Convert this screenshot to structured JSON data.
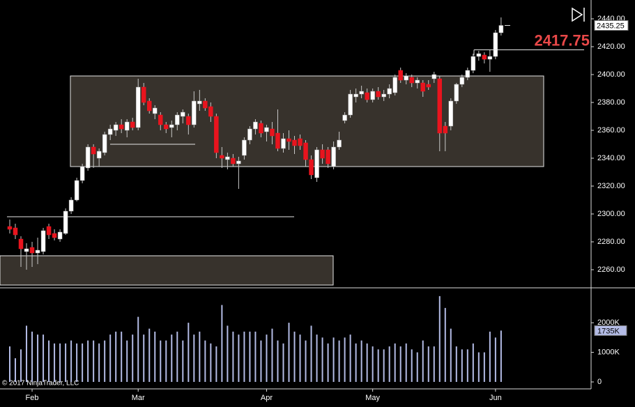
{
  "chart_data": [
    {
      "type": "candlestick",
      "categories": [
        null,
        null,
        null,
        null,
        "Feb",
        null,
        null,
        null,
        null,
        null,
        null,
        null,
        null,
        null,
        null,
        null,
        null,
        null,
        null,
        null,
        null,
        null,
        null,
        "Mar",
        null,
        null,
        null,
        null,
        null,
        null,
        null,
        null,
        null,
        null,
        null,
        null,
        null,
        null,
        null,
        null,
        null,
        null,
        null,
        null,
        null,
        null,
        "Apr",
        null,
        null,
        null,
        null,
        null,
        null,
        null,
        null,
        null,
        null,
        null,
        null,
        null,
        null,
        null,
        null,
        null,
        null,
        "May",
        null,
        null,
        null,
        null,
        null,
        null,
        null,
        null,
        null,
        null,
        null,
        null,
        null,
        null,
        null,
        null,
        null,
        null,
        null,
        null,
        null,
        "Jun",
        null
      ],
      "open": [
        2291,
        2290,
        2282,
        2273,
        2276,
        2272,
        2273,
        2291,
        2286,
        2282,
        2286,
        2302,
        2310,
        2324,
        2333,
        2348,
        2340,
        2344,
        2357,
        2360,
        2364,
        2360,
        2366,
        2362,
        2391,
        2381,
        2372,
        2371,
        2364,
        2362,
        2364,
        2370,
        2370,
        2364,
        2379,
        2381,
        2377,
        2370,
        2342,
        2339,
        2340,
        2336,
        2342,
        2353,
        2361,
        2365,
        2359,
        2361,
        2358,
        2347,
        2354,
        2353,
        2354,
        2351,
        2339,
        2326,
        2346,
        2346,
        2334,
        2348,
        2367,
        2371,
        2384,
        2386,
        2387,
        2382,
        2388,
        2384,
        2386,
        2387,
        2403,
        2396,
        2398,
        2394,
        2394,
        2393,
        2397,
        2397,
        2363,
        2363,
        2381,
        2393,
        2398,
        2403,
        2413,
        2414,
        2411,
        2413,
        2430
      ],
      "high": [
        2296,
        2293,
        2284,
        2279,
        2280,
        2283,
        2290,
        2293,
        2289,
        2289,
        2304,
        2312,
        2326,
        2336,
        2350,
        2350,
        2347,
        2359,
        2364,
        2366,
        2368,
        2368,
        2369,
        2397,
        2394,
        2383,
        2378,
        2373,
        2366,
        2367,
        2373,
        2375,
        2372,
        2388,
        2389,
        2383,
        2380,
        2372,
        2348,
        2344,
        2343,
        2341,
        2355,
        2363,
        2368,
        2367,
        2364,
        2366,
        2375,
        2358,
        2360,
        2356,
        2357,
        2353,
        2342,
        2348,
        2350,
        2348,
        2352,
        2359,
        2373,
        2389,
        2390,
        2392,
        2390,
        2390,
        2391,
        2389,
        2393,
        2400,
        2405,
        2401,
        2400,
        2398,
        2396,
        2396,
        2402,
        2399,
        2366,
        2383,
        2394,
        2400,
        2405,
        2415,
        2417,
        2416,
        2418,
        2432,
        2441
      ],
      "low": [
        2286,
        2282,
        2262,
        2260,
        2262,
        2264,
        2271,
        2282,
        2281,
        2280,
        2285,
        2300,
        2309,
        2322,
        2331,
        2333,
        2334,
        2342,
        2353,
        2356,
        2358,
        2355,
        2360,
        2360,
        2378,
        2372,
        2368,
        2360,
        2358,
        2355,
        2360,
        2365,
        2357,
        2362,
        2374,
        2374,
        2366,
        2340,
        2333,
        2332,
        2334,
        2318,
        2339,
        2350,
        2357,
        2355,
        2352,
        2350,
        2345,
        2344,
        2346,
        2343,
        2346,
        2334,
        2325,
        2323,
        2336,
        2333,
        2332,
        2346,
        2365,
        2369,
        2380,
        2383,
        2380,
        2380,
        2382,
        2381,
        2383,
        2385,
        2394,
        2393,
        2391,
        2390,
        2384,
        2389,
        2394,
        2345,
        2345,
        2360,
        2379,
        2391,
        2396,
        2401,
        2410,
        2408,
        2402,
        2411,
        2428
      ],
      "close": [
        2289,
        2285,
        2275,
        2275,
        2272,
        2274,
        2288,
        2285,
        2283,
        2287,
        2302,
        2310,
        2324,
        2334,
        2348,
        2343,
        2345,
        2357,
        2361,
        2364,
        2361,
        2366,
        2362,
        2391,
        2380,
        2374,
        2376,
        2364,
        2361,
        2364,
        2371,
        2373,
        2364,
        2381,
        2381,
        2376,
        2370,
        2344,
        2340,
        2341,
        2336,
        2338,
        2353,
        2361,
        2366,
        2358,
        2362,
        2356,
        2347,
        2354,
        2352,
        2349,
        2349,
        2339,
        2328,
        2346,
        2340,
        2336,
        2348,
        2353,
        2371,
        2386,
        2386,
        2388,
        2382,
        2388,
        2384,
        2386,
        2390,
        2398,
        2396,
        2399,
        2394,
        2396,
        2388,
        2391,
        2400,
        2358,
        2358,
        2381,
        2393,
        2398,
        2403,
        2413,
        2415,
        2411,
        2413,
        2430,
        2435.25
      ],
      "up_color": "#ffffff",
      "down_color": "#e8141e",
      "wick_color": "#c8c8c8",
      "ylim": [
        2248,
        2453.5
      ],
      "yticks": [
        {
          "value": 2260,
          "label": "2260.00"
        },
        {
          "value": 2280,
          "label": "2280.00"
        },
        {
          "value": 2300,
          "label": "2300.00"
        },
        {
          "value": 2320,
          "label": "2320.00"
        },
        {
          "value": 2340,
          "label": "2340.00"
        },
        {
          "value": 2360,
          "label": "2360.00"
        },
        {
          "value": 2380,
          "label": "2380.00"
        },
        {
          "value": 2400,
          "label": "2400.00"
        },
        {
          "value": 2420,
          "label": "2420.00"
        },
        {
          "value": 2440,
          "label": "2440.00"
        }
      ],
      "zones": [
        {
          "top": 2399,
          "bottom": 2334
        },
        {
          "top": 2270,
          "bottom": 2249
        }
      ],
      "levels": [
        2350,
        2298
      ],
      "marked_price": 2417.75,
      "marked_price_color": "#e84848"
    },
    {
      "type": "bar",
      "values": [
        1200,
        800,
        1100,
        1900,
        1700,
        1600,
        1600,
        1400,
        1300,
        1300,
        1300,
        1400,
        1300,
        1300,
        1400,
        1400,
        1300,
        1400,
        1600,
        1700,
        1700,
        1400,
        1600,
        2200,
        1600,
        1800,
        1700,
        1400,
        1400,
        1600,
        1700,
        1400,
        2000,
        1600,
        1700,
        1400,
        1300,
        1200,
        2600,
        1900,
        1700,
        1600,
        1700,
        1700,
        1700,
        1400,
        1600,
        1800,
        1400,
        1300,
        2000,
        1700,
        1600,
        1400,
        1900,
        1600,
        1500,
        1300,
        1500,
        1400,
        1500,
        1600,
        1300,
        1400,
        1300,
        1200,
        1100,
        1100,
        1200,
        1300,
        1200,
        1300,
        1100,
        1000,
        1400,
        1200,
        1200,
        2900,
        2500,
        1800,
        1200,
        1100,
        1100,
        1300,
        1000,
        1000,
        1700,
        1500,
        1735
      ],
      "color": "#b4bce6",
      "ylim": [
        -235,
        3180
      ],
      "yticks": [
        0,
        {
          "value": 1000,
          "label": "1000K"
        },
        {
          "value": 2000,
          "label": "2000K"
        }
      ],
      "last_label": {
        "value": 1735,
        "label": "1735K"
      }
    },
    {
      "copyright": "© 2017 NinjaTrader, LLC"
    }
  ]
}
